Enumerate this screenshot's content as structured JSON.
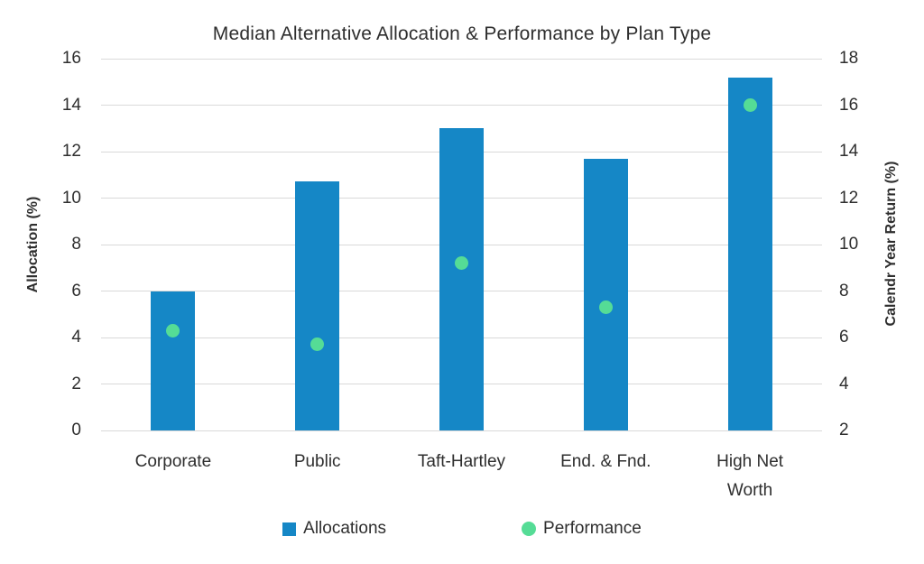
{
  "chart_data": {
    "type": "bar",
    "subtype": "combo-bar-scatter-dual-axis",
    "title": "Median Alternative Allocation & Performance by Plan Type",
    "categories": [
      "Corporate",
      "Public",
      "Taft-Hartley",
      "End. & Fnd.",
      "High Net Worth"
    ],
    "series": [
      {
        "name": "Allocations",
        "type": "bar",
        "axis": "left",
        "color": "#1587C6",
        "values": [
          6.0,
          10.7,
          13.0,
          11.7,
          15.2
        ]
      },
      {
        "name": "Performance",
        "type": "scatter",
        "axis": "right",
        "color": "#55DC96",
        "values": [
          6.3,
          5.7,
          9.2,
          7.3,
          16.0
        ]
      }
    ],
    "axes": {
      "left": {
        "label": "Allocation (%)",
        "min": 0,
        "max": 16,
        "step": 2
      },
      "right": {
        "label": "Calendr Year Return (%)",
        "min": 2,
        "max": 18,
        "step": 2
      }
    },
    "legend": {
      "position": "bottom",
      "items": [
        "Allocations",
        "Performance"
      ]
    },
    "grid": true,
    "colors": {
      "bar": "#1587C6",
      "dot": "#55DC96",
      "gridline": "#D9D9D9",
      "text": "#2E2E2E",
      "background": "#FFFFFF"
    }
  }
}
